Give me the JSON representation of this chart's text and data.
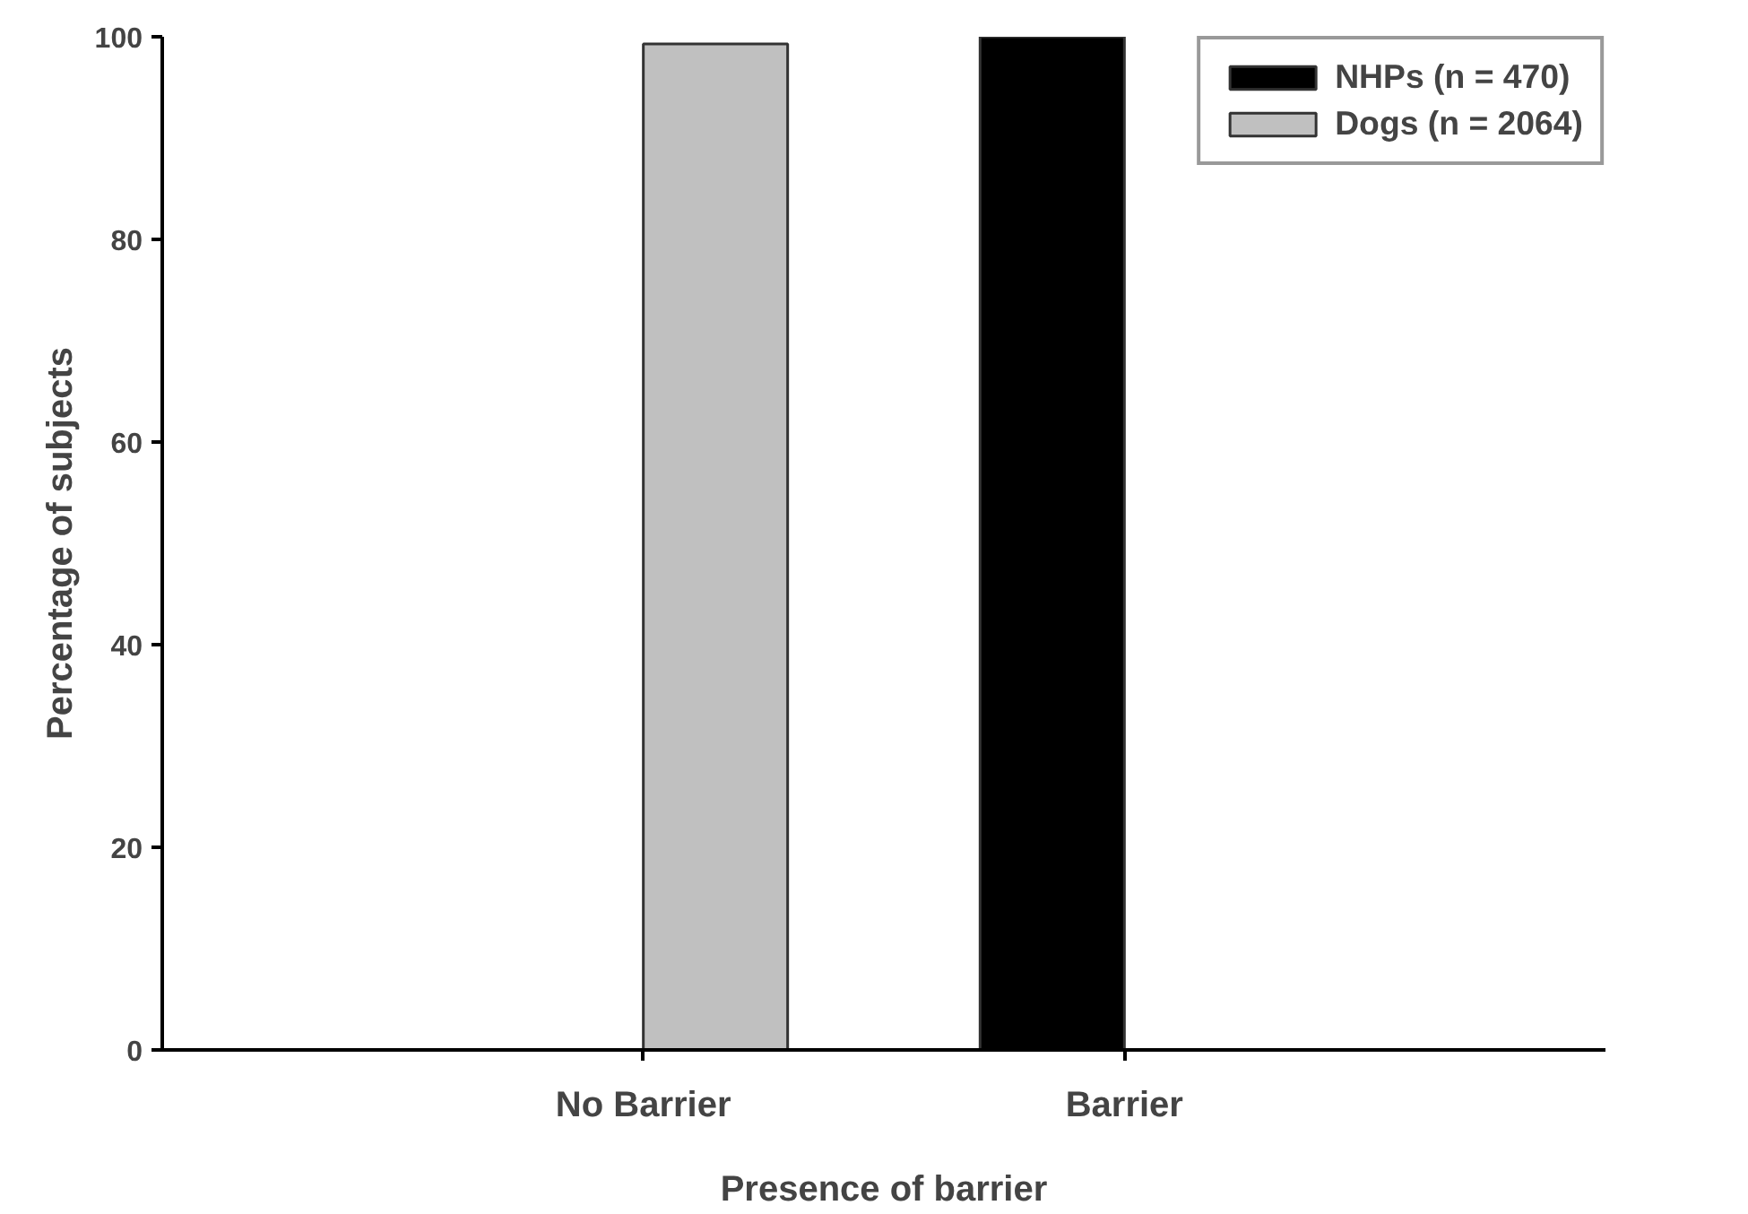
{
  "chart_data": {
    "type": "bar",
    "xlabel": "Presence of barrier",
    "ylabel": "Percentage of subjects",
    "categories": [
      "No Barrier",
      "Barrier"
    ],
    "series": [
      {
        "name": "NHPs (n = 470)",
        "color": "#000000",
        "values": [
          null,
          100
        ]
      },
      {
        "name": "Dogs (n = 2064)",
        "color": "#c0c0c0",
        "values": [
          99.3,
          null
        ]
      }
    ],
    "ylim": [
      0,
      100
    ],
    "yticks": [
      0,
      20,
      40,
      60,
      80,
      100
    ],
    "grid": false,
    "legend": "top right"
  }
}
